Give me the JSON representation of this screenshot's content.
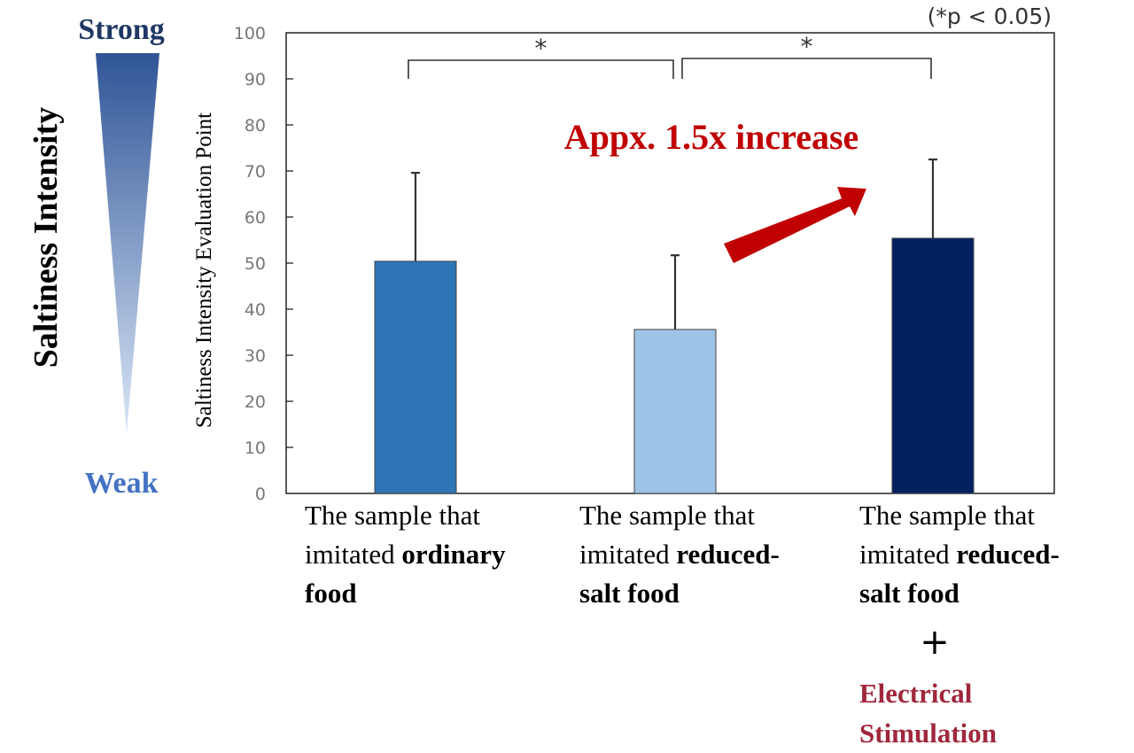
{
  "chart_data": {
    "type": "bar",
    "title": "",
    "ylabel": "Saltiness Intensity Evaluation Point",
    "xlabel": "",
    "ylim": [
      0,
      100
    ],
    "yticks": [
      "0",
      "10",
      "20",
      "30",
      "40",
      "50",
      "60",
      "70",
      "80",
      "90",
      "100"
    ],
    "grid": false,
    "categories": [
      "The sample that imitated ordinary food",
      "The sample that imitated reduced-salt food",
      "The sample that imitated reduced-salt food + Electrical Stimulation"
    ],
    "values": [
      50.4,
      35.6,
      55.4
    ],
    "error_upper": [
      69.6,
      51.7,
      72.5
    ],
    "bar_colors": [
      "#2e75b6",
      "#9dc3e6",
      "#002060"
    ],
    "significance": [
      {
        "from": 0,
        "to": 1,
        "label": "*"
      },
      {
        "from": 1,
        "to": 2,
        "label": "*"
      }
    ],
    "significance_note": "(*p < 0.05)",
    "annotation": "Appx. 1.5x increase",
    "annotation_color": "#c00000"
  },
  "side_scale": {
    "title": "Saltiness Intensity",
    "top_label": "Strong",
    "bottom_label": "Weak",
    "top_color": "#1f3864",
    "bottom_color": "#4472c4"
  },
  "category_labels": [
    {
      "lines": [
        [
          "The sample that",
          ""
        ],
        [
          "imitated ",
          "ordinary"
        ],
        [
          "",
          "food"
        ]
      ]
    },
    {
      "lines": [
        [
          "The sample that",
          ""
        ],
        [
          "imitated ",
          "reduced-"
        ],
        [
          "",
          "salt food"
        ]
      ]
    },
    {
      "lines": [
        [
          "The sample that",
          ""
        ],
        [
          "imitated ",
          "reduced-"
        ],
        [
          "",
          "salt food"
        ]
      ],
      "plus": "+",
      "extra": [
        "Electrical",
        "Stimulation"
      ],
      "extra_color": "#a0283c"
    }
  ]
}
